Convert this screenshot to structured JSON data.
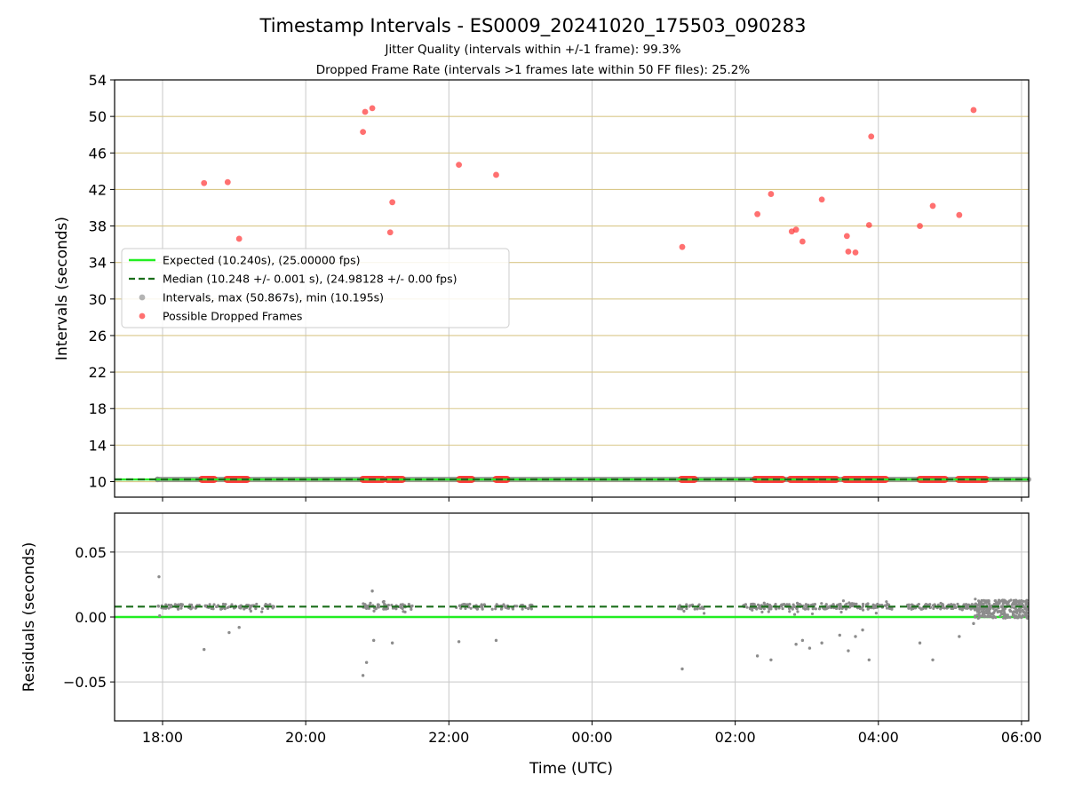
{
  "title": "Timestamp Intervals - ES0009_20241020_175503_090283",
  "subtitle1": "Jitter Quality (intervals within +/-1 frame): 99.3%",
  "subtitle2": "Dropped Frame Rate (intervals >1 frames late within 50 FF files): 25.2%",
  "colors": {
    "expected": "#22ee22",
    "median": "#1a6e1a",
    "intervals": "#8c8c8c",
    "dropped": "#ff3333",
    "hgrid_top": "#d9c88a",
    "grid": "#c8c8c8"
  },
  "chart_data": [
    {
      "type": "scatter",
      "ylabel": "Intervals (seconds)",
      "ylim": [
        8.3,
        54
      ],
      "yticks": [
        10,
        14,
        18,
        22,
        26,
        30,
        34,
        38,
        42,
        46,
        50,
        54
      ],
      "xlim_hours": [
        17.33,
        30.1
      ],
      "xticks": [
        {
          "h": 18,
          "label": "18:00"
        },
        {
          "h": 20,
          "label": "20:00"
        },
        {
          "h": 22,
          "label": "22:00"
        },
        {
          "h": 24,
          "label": "00:00"
        },
        {
          "h": 26,
          "label": "02:00"
        },
        {
          "h": 28,
          "label": "04:00"
        },
        {
          "h": 30,
          "label": "06:00"
        }
      ],
      "grid": true,
      "legend_position": "middle-left",
      "legend": [
        {
          "label": "Expected (10.240s), (25.00000 fps)",
          "kind": "solid"
        },
        {
          "label": "Median (10.248 +/- 0.001 s), (24.98128 +/- 0.00 fps)",
          "kind": "dashed"
        },
        {
          "label": "Intervals, max (50.867s), min (10.195s)",
          "kind": "dot-gray"
        },
        {
          "label": "Possible Dropped Frames",
          "kind": "dot-red"
        }
      ],
      "expected": 10.24,
      "median": 10.248,
      "intervals_range": [
        17.93,
        30.1
      ],
      "dropped_points": [
        [
          18.58,
          42.7
        ],
        [
          18.91,
          42.8
        ],
        [
          19.07,
          36.6
        ],
        [
          20.8,
          48.3
        ],
        [
          20.83,
          50.5
        ],
        [
          20.93,
          50.9
        ],
        [
          21.18,
          37.3
        ],
        [
          21.21,
          40.6
        ],
        [
          22.14,
          44.7
        ],
        [
          22.66,
          43.6
        ],
        [
          25.26,
          35.7
        ],
        [
          26.31,
          39.3
        ],
        [
          26.5,
          41.5
        ],
        [
          26.79,
          37.4
        ],
        [
          26.85,
          37.6
        ],
        [
          26.94,
          36.3
        ],
        [
          27.21,
          40.9
        ],
        [
          27.56,
          36.9
        ],
        [
          27.58,
          35.2
        ],
        [
          27.68,
          35.1
        ],
        [
          27.87,
          38.1
        ],
        [
          27.9,
          47.8
        ],
        [
          28.58,
          38.0
        ],
        [
          28.76,
          40.2
        ],
        [
          29.13,
          39.2
        ],
        [
          29.33,
          50.7
        ]
      ],
      "dropped_clusters": [
        [
          18.55,
          18.72
        ],
        [
          18.9,
          19.18
        ],
        [
          20.8,
          21.08
        ],
        [
          21.14,
          21.35
        ],
        [
          22.15,
          22.32
        ],
        [
          22.66,
          22.81
        ],
        [
          25.25,
          25.43
        ],
        [
          26.28,
          26.66
        ],
        [
          26.77,
          27.15
        ],
        [
          27.18,
          27.41
        ],
        [
          27.53,
          28.1
        ],
        [
          28.58,
          28.93
        ],
        [
          29.12,
          29.5
        ]
      ]
    },
    {
      "type": "scatter",
      "ylabel": "Residuals (seconds)",
      "xlabel": "Time (UTC)",
      "ylim": [
        -0.08,
        0.08
      ],
      "yticks": [
        {
          "v": 0.05,
          "label": "0.05"
        },
        {
          "v": 0.0,
          "label": "0.00"
        },
        {
          "v": -0.05,
          "label": "−0.05"
        }
      ],
      "expected_residual": 0.0,
      "median_residual": 0.008,
      "dense_ranges": [
        [
          17.93,
          18.6,
          40
        ],
        [
          18.6,
          19.3,
          50
        ],
        [
          19.3,
          19.6,
          15
        ],
        [
          20.8,
          21.5,
          70
        ],
        [
          22.1,
          22.5,
          30
        ],
        [
          22.6,
          23.2,
          35
        ],
        [
          25.2,
          25.6,
          25
        ],
        [
          26.1,
          26.7,
          70
        ],
        [
          26.7,
          27.4,
          70
        ],
        [
          27.4,
          28.2,
          90
        ],
        [
          28.4,
          29.0,
          60
        ],
        [
          29.0,
          29.4,
          60
        ]
      ],
      "band_ranges": [
        [
          29.35,
          30.1,
          260
        ]
      ],
      "outliers": [
        [
          17.95,
          0.031
        ],
        [
          17.96,
          0.001
        ],
        [
          18.58,
          -0.025
        ],
        [
          18.93,
          -0.012
        ],
        [
          19.07,
          -0.008
        ],
        [
          20.8,
          -0.045
        ],
        [
          20.85,
          -0.035
        ],
        [
          20.93,
          0.02
        ],
        [
          20.95,
          -0.018
        ],
        [
          21.21,
          -0.02
        ],
        [
          22.14,
          -0.019
        ],
        [
          22.66,
          -0.018
        ],
        [
          25.26,
          -0.04
        ],
        [
          26.31,
          -0.03
        ],
        [
          26.5,
          -0.033
        ],
        [
          26.85,
          -0.021
        ],
        [
          26.94,
          -0.018
        ],
        [
          27.04,
          -0.024
        ],
        [
          27.21,
          -0.02
        ],
        [
          27.46,
          -0.014
        ],
        [
          27.58,
          -0.026
        ],
        [
          27.68,
          -0.015
        ],
        [
          27.78,
          -0.01
        ],
        [
          27.87,
          -0.033
        ],
        [
          28.58,
          -0.02
        ],
        [
          28.76,
          -0.033
        ],
        [
          29.13,
          -0.015
        ],
        [
          29.33,
          -0.005
        ]
      ]
    }
  ]
}
